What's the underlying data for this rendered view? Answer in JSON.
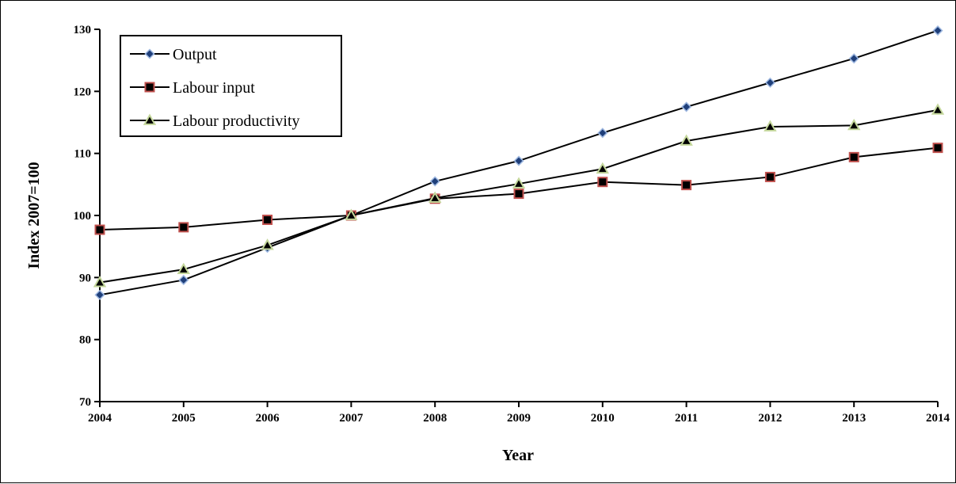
{
  "chart_data": {
    "type": "line",
    "title": "",
    "xlabel": "Year",
    "ylabel": "Index 2007=100",
    "x": [
      "2004",
      "2005",
      "2006",
      "2007",
      "2008",
      "2009",
      "2010",
      "2011",
      "2012",
      "2013",
      "2014"
    ],
    "yticks": [
      70,
      80,
      90,
      100,
      110,
      120,
      130
    ],
    "ylim": [
      70,
      130
    ],
    "grid": false,
    "legend_position": "top-left",
    "series": [
      {
        "name": "Output",
        "marker": "diamond",
        "marker_color": "#1f3f7a",
        "marker_edge": "#9db7e0",
        "values": [
          87.2,
          89.6,
          94.8,
          100.0,
          105.5,
          108.8,
          113.3,
          117.5,
          121.4,
          125.3,
          129.8
        ]
      },
      {
        "name": "Labour input",
        "marker": "square",
        "marker_color": "#000000",
        "marker_edge": "#c0504d",
        "values": [
          97.7,
          98.1,
          99.3,
          100.0,
          102.7,
          103.5,
          105.4,
          104.9,
          106.2,
          109.4,
          110.9
        ]
      },
      {
        "name": "Labour productivity",
        "marker": "triangle",
        "marker_color": "#000000",
        "marker_edge": "#c4d79b",
        "values": [
          89.2,
          91.3,
          95.2,
          100.0,
          102.8,
          105.1,
          107.5,
          112.0,
          114.3,
          114.5,
          117.0
        ]
      }
    ]
  }
}
